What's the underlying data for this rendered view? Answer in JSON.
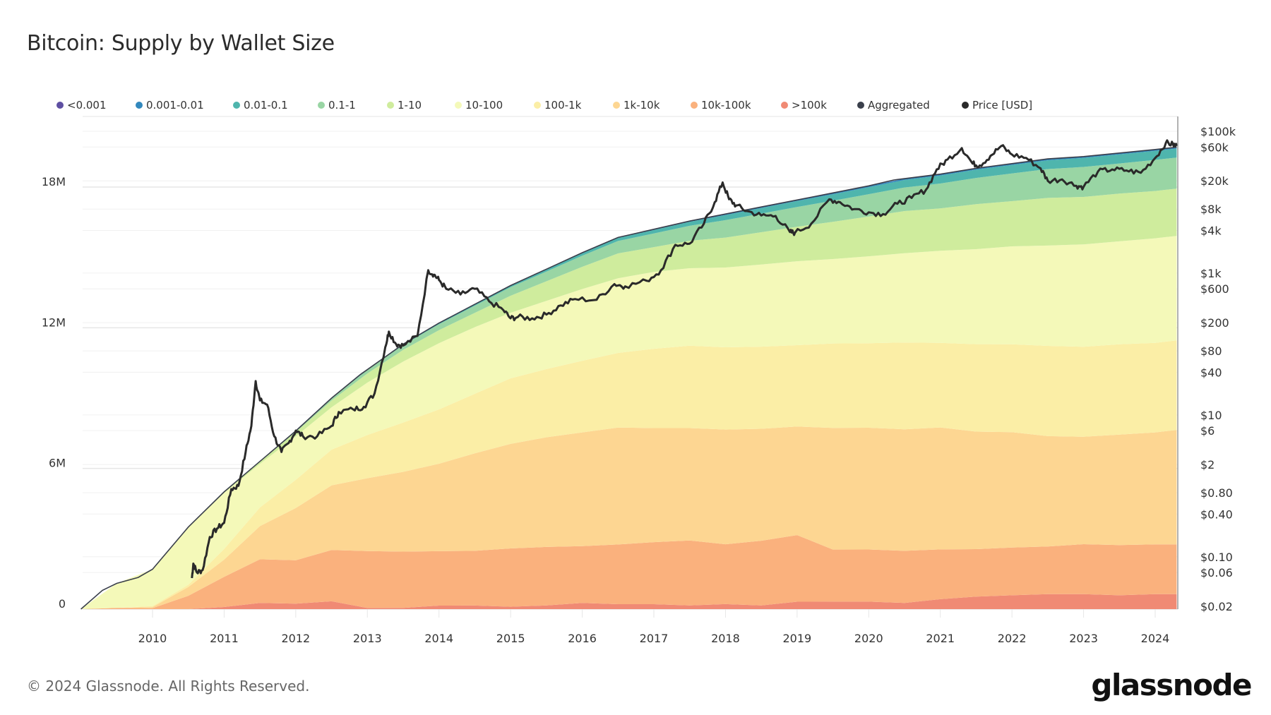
{
  "title": "Bitcoin: Supply by Wallet Size",
  "footer": "© 2024 Glassnode. All Rights Reserved.",
  "brand": "glassnode",
  "chart_data": {
    "type": "area",
    "stacked": true,
    "title": "Bitcoin: Supply by Wallet Size",
    "xlabel": "",
    "ylabel": "",
    "y2label": "",
    "x_ticks": [
      "2010",
      "2011",
      "2012",
      "2013",
      "2014",
      "2015",
      "2016",
      "2017",
      "2018",
      "2019",
      "2020",
      "2021",
      "2022",
      "2023",
      "2024"
    ],
    "y_ticks": [
      "0",
      "6M",
      "12M",
      "18M"
    ],
    "y_tick_values": [
      0,
      6,
      12,
      18
    ],
    "y2_ticks": [
      "$100k",
      "$60k",
      "$20k",
      "$8k",
      "$4k",
      "$1k",
      "$600",
      "$200",
      "$80",
      "$40",
      "$10",
      "$6",
      "$2",
      "$0.80",
      "$0.40",
      "$0.10",
      "$0.06",
      "$0.02"
    ],
    "y2_tick_values": [
      100000,
      60000,
      20000,
      8000,
      4000,
      1000,
      600,
      200,
      80,
      40,
      10,
      6,
      2,
      0.8,
      0.4,
      0.1,
      0.06,
      0.02
    ],
    "ylim": [
      0,
      20.3
    ],
    "y2lim": [
      0.02,
      100000
    ],
    "y2_scale": "log",
    "xlim": [
      2009.0,
      2024.3
    ],
    "grid": true,
    "legend_position": "top",
    "legend": [
      {
        "name": "<0.001",
        "color": "#5e4fa2"
      },
      {
        "name": "0.001-0.01",
        "color": "#3288bd"
      },
      {
        "name": "0.01-0.1",
        "color": "#4fb5ad"
      },
      {
        "name": "0.1-1",
        "color": "#99d5a4"
      },
      {
        "name": "1-10",
        "color": "#cfec9d"
      },
      {
        "name": "10-100",
        "color": "#f4f9b9"
      },
      {
        "name": "100-1k",
        "color": "#fbeea6"
      },
      {
        "name": "1k-10k",
        "color": "#fdd692"
      },
      {
        "name": "10k-100k",
        "color": "#fab17d"
      },
      {
        "name": ">100k",
        "color": "#f08a74"
      },
      {
        "name": "Aggregated",
        "color": "#3a3f4b"
      },
      {
        "name": "Price [USD]",
        "color": "#2a2a2a"
      }
    ],
    "x": [
      2009.0,
      2009.5,
      2010.0,
      2010.5,
      2011.0,
      2011.5,
      2012.0,
      2012.5,
      2013.0,
      2013.5,
      2014.0,
      2014.5,
      2015.0,
      2015.5,
      2016.0,
      2016.5,
      2017.0,
      2017.5,
      2018.0,
      2018.5,
      2019.0,
      2019.5,
      2020.0,
      2020.5,
      2021.0,
      2021.5,
      2022.0,
      2022.5,
      2023.0,
      2023.5,
      2024.0,
      2024.3
    ],
    "series": [
      {
        "name": ">100k",
        "values": [
          0,
          0,
          0,
          0,
          0.1,
          0.3,
          0.25,
          0.35,
          0.05,
          0.05,
          0.15,
          0.15,
          0.1,
          0.15,
          0.25,
          0.2,
          0.2,
          0.15,
          0.2,
          0.15,
          0.3,
          0.3,
          0.3,
          0.25,
          0.4,
          0.5,
          0.55,
          0.6,
          0.6,
          0.55,
          0.6,
          0.6
        ]
      },
      {
        "name": "10k-100k",
        "values": [
          0,
          0.05,
          0.05,
          0.6,
          1.4,
          2.1,
          2.0,
          2.3,
          2.5,
          2.4,
          2.3,
          2.3,
          2.4,
          2.4,
          2.3,
          2.4,
          2.5,
          2.6,
          2.4,
          2.6,
          2.7,
          2.1,
          2.1,
          2.1,
          2.0,
          1.9,
          1.9,
          1.9,
          2.0,
          2.0,
          2.0,
          2.0
        ]
      },
      {
        "name": "1k-10k",
        "values": [
          0,
          0,
          0.05,
          0.4,
          0.8,
          1.6,
          2.4,
          2.9,
          3.2,
          3.4,
          3.7,
          4.1,
          4.3,
          4.5,
          4.6,
          4.7,
          4.6,
          4.5,
          4.6,
          4.5,
          4.4,
          4.9,
          4.9,
          4.9,
          4.9,
          4.7,
          4.6,
          4.4,
          4.3,
          4.4,
          4.5,
          4.6
        ]
      },
      {
        "name": "100-1k",
        "values": [
          0,
          0,
          0.05,
          0.1,
          0.5,
          0.9,
          1.3,
          1.6,
          1.9,
          2.1,
          2.3,
          2.5,
          2.7,
          2.8,
          2.9,
          3.0,
          3.2,
          3.3,
          3.3,
          3.3,
          3.3,
          3.4,
          3.4,
          3.5,
          3.4,
          3.5,
          3.5,
          3.6,
          3.6,
          3.6,
          3.6,
          3.6
        ]
      },
      {
        "name": "10-100",
        "values": [
          0,
          1.0,
          1.8,
          2.6,
          2.6,
          2.1,
          2.0,
          1.9,
          2.3,
          2.6,
          2.8,
          2.8,
          2.7,
          2.8,
          2.9,
          3.0,
          3.1,
          3.1,
          3.2,
          3.3,
          3.4,
          3.4,
          3.5,
          3.6,
          3.7,
          3.8,
          3.9,
          4.0,
          4.1,
          4.1,
          4.2,
          4.2
        ]
      },
      {
        "name": "1-10",
        "values": [
          0,
          0,
          0,
          0,
          0.05,
          0.1,
          0.2,
          0.3,
          0.4,
          0.5,
          0.55,
          0.6,
          0.7,
          0.8,
          0.9,
          1.0,
          1.0,
          1.1,
          1.2,
          1.3,
          1.4,
          1.5,
          1.6,
          1.7,
          1.7,
          1.8,
          1.8,
          1.9,
          1.9,
          1.9,
          1.9,
          1.9
        ]
      },
      {
        "name": "0.1-1",
        "values": [
          0,
          0,
          0,
          0,
          0,
          0.02,
          0.05,
          0.1,
          0.15,
          0.2,
          0.25,
          0.3,
          0.35,
          0.4,
          0.45,
          0.5,
          0.55,
          0.6,
          0.7,
          0.75,
          0.8,
          0.85,
          0.9,
          0.95,
          1.0,
          1.05,
          1.1,
          1.15,
          1.2,
          1.2,
          1.25,
          1.25
        ]
      },
      {
        "name": "0.01-0.1",
        "values": [
          0,
          0,
          0,
          0,
          0,
          0,
          0,
          0.01,
          0.02,
          0.03,
          0.04,
          0.05,
          0.06,
          0.08,
          0.1,
          0.12,
          0.14,
          0.16,
          0.2,
          0.22,
          0.24,
          0.26,
          0.28,
          0.3,
          0.32,
          0.33,
          0.34,
          0.35,
          0.36,
          0.36,
          0.36,
          0.36
        ]
      },
      {
        "name": "0.001-0.01",
        "values": [
          0,
          0,
          0,
          0,
          0,
          0,
          0,
          0,
          0,
          0.01,
          0.01,
          0.01,
          0.01,
          0.02,
          0.02,
          0.02,
          0.03,
          0.03,
          0.04,
          0.04,
          0.04,
          0.05,
          0.05,
          0.05,
          0.05,
          0.05,
          0.05,
          0.05,
          0.05,
          0.05,
          0.05,
          0.05
        ]
      },
      {
        "name": "<0.001",
        "values": [
          0,
          0,
          0,
          0,
          0,
          0,
          0,
          0,
          0,
          0,
          0,
          0,
          0,
          0,
          0,
          0,
          0,
          0,
          0.005,
          0.005,
          0.005,
          0.005,
          0.005,
          0.005,
          0.005,
          0.005,
          0.005,
          0.005,
          0.005,
          0.005,
          0.005,
          0.005
        ]
      }
    ],
    "aggregated": {
      "name": "Aggregated",
      "x": [
        2009.0,
        2009.3,
        2009.5,
        2009.8,
        2010.0,
        2010.5,
        2011.0,
        2011.5,
        2012.0,
        2012.5,
        2012.9,
        2013.5,
        2014.0,
        2014.5,
        2015.0,
        2015.5,
        2016.0,
        2016.5,
        2017.0,
        2017.5,
        2018.0,
        2018.5,
        2019.0,
        2019.5,
        2020.0,
        2020.35,
        2021.0,
        2021.5,
        2022.0,
        2022.5,
        2023.0,
        2023.5,
        2024.0,
        2024.3
      ],
      "values": [
        0,
        0.8,
        1.1,
        1.35,
        1.7,
        3.5,
        5.0,
        6.3,
        7.6,
        9.0,
        10.0,
        11.3,
        12.2,
        13.0,
        13.8,
        14.5,
        15.2,
        15.85,
        16.2,
        16.55,
        16.85,
        17.15,
        17.45,
        17.75,
        18.05,
        18.3,
        18.55,
        18.8,
        19.0,
        19.2,
        19.3,
        19.45,
        19.6,
        19.7
      ]
    },
    "price": {
      "name": "Price [USD]",
      "x": [
        2010.55,
        2010.57,
        2010.62,
        2010.7,
        2010.8,
        2010.9,
        2011.0,
        2011.1,
        2011.2,
        2011.3,
        2011.38,
        2011.44,
        2011.5,
        2011.6,
        2011.7,
        2011.8,
        2011.9,
        2012.0,
        2012.1,
        2012.3,
        2012.5,
        2012.6,
        2012.8,
        2012.95,
        2013.1,
        2013.25,
        2013.3,
        2013.4,
        2013.5,
        2013.7,
        2013.85,
        2013.93,
        2014.0,
        2014.1,
        2014.3,
        2014.5,
        2014.7,
        2014.9,
        2015.0,
        2015.1,
        2015.3,
        2015.5,
        2015.7,
        2015.9,
        2016.2,
        2016.45,
        2016.6,
        2016.9,
        2017.1,
        2017.3,
        2017.5,
        2017.7,
        2017.85,
        2017.96,
        2018.05,
        2018.15,
        2018.3,
        2018.5,
        2018.7,
        2018.9,
        2018.97,
        2019.2,
        2019.45,
        2019.6,
        2019.8,
        2020.0,
        2020.2,
        2020.4,
        2020.6,
        2020.8,
        2020.95,
        2021.1,
        2021.3,
        2021.45,
        2021.55,
        2021.7,
        2021.85,
        2022.0,
        2022.2,
        2022.4,
        2022.5,
        2022.7,
        2022.9,
        2023.0,
        2023.2,
        2023.4,
        2023.6,
        2023.8,
        2024.0,
        2024.15,
        2024.25,
        2024.3
      ],
      "values": [
        0.05,
        0.08,
        0.06,
        0.065,
        0.19,
        0.25,
        0.3,
        0.9,
        1.0,
        3.0,
        7.0,
        30,
        16,
        14,
        5,
        3,
        4,
        6,
        5,
        5,
        7,
        11,
        12,
        13,
        20,
        90,
        150,
        100,
        95,
        130,
        1100,
        950,
        800,
        600,
        500,
        600,
        400,
        300,
        230,
        240,
        230,
        260,
        350,
        430,
        420,
        700,
        650,
        780,
        1100,
        2500,
        2600,
        5000,
        10000,
        19000,
        11000,
        9000,
        7500,
        6500,
        6400,
        3800,
        3700,
        5000,
        11000,
        10000,
        8000,
        7200,
        6800,
        9500,
        11500,
        15000,
        29000,
        40000,
        58000,
        35000,
        33000,
        45000,
        62000,
        47000,
        42000,
        30000,
        20000,
        21000,
        17000,
        16500,
        27000,
        29000,
        28000,
        26000,
        42000,
        69000,
        65000,
        62000
      ]
    }
  }
}
